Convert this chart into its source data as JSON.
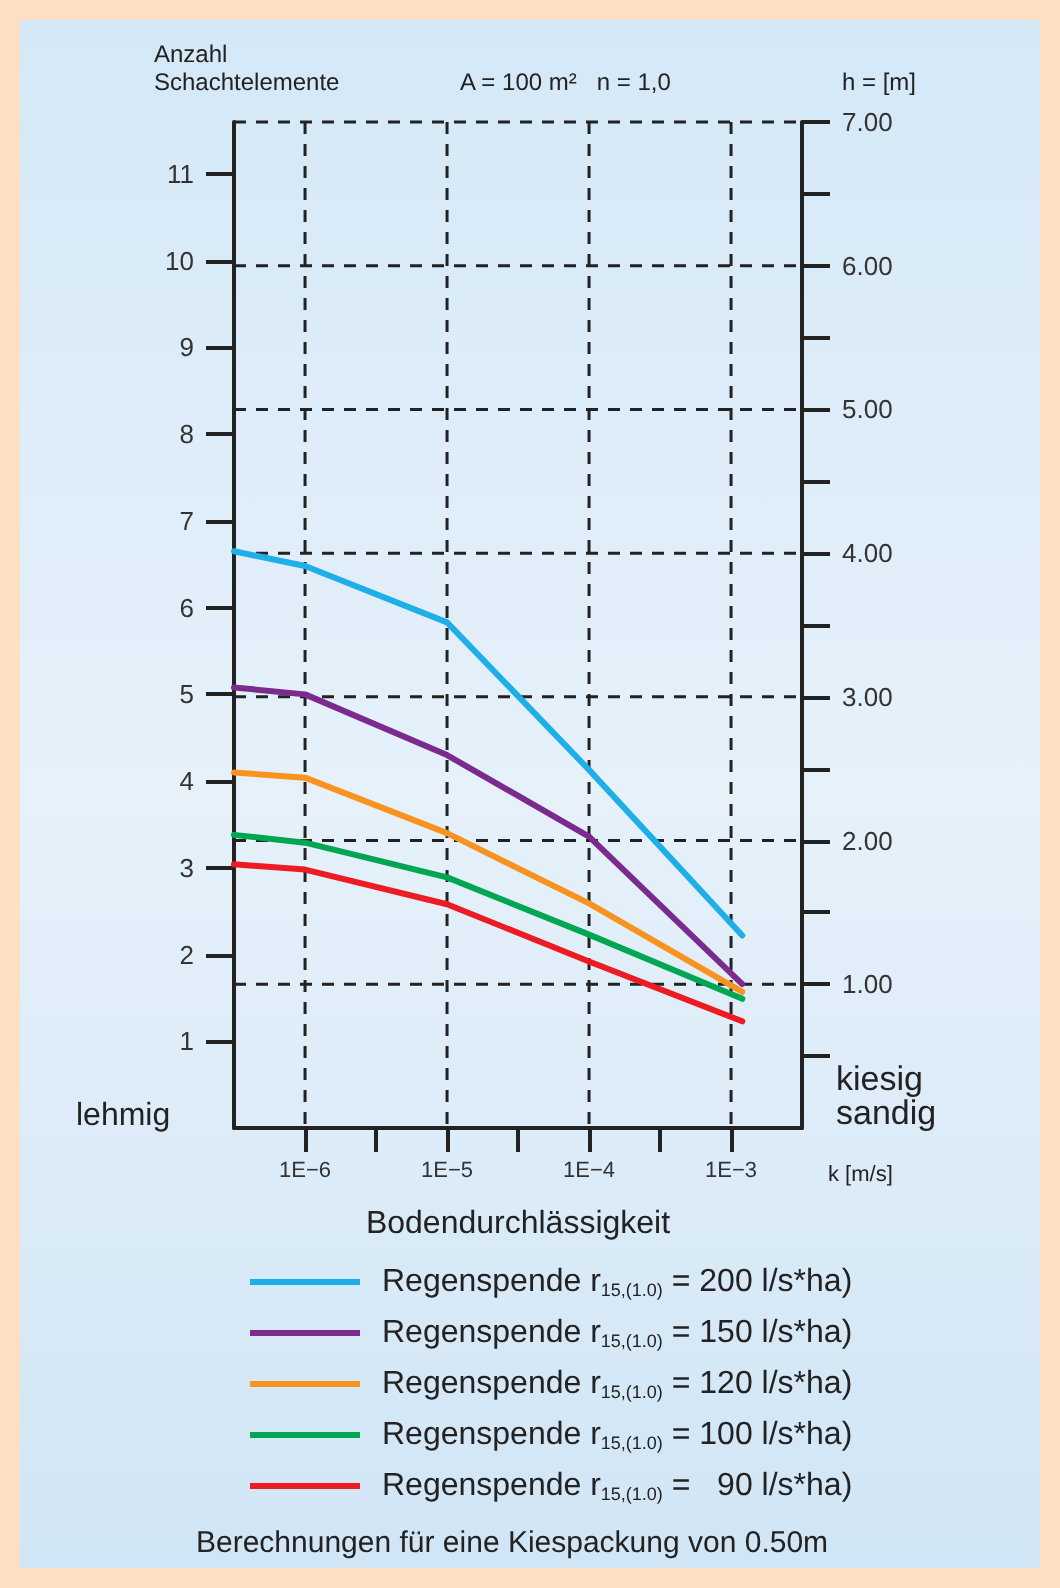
{
  "chart_data": {
    "type": "line",
    "ylabel": "Anzahl\nSchachtelemente",
    "y2label": "h = [m]",
    "xlabel": "Bodendurchlässigkeit",
    "annotations": [
      "A = 100 m²   n = 1,0",
      "k [m/s]",
      "lehmig",
      "kiesig\nsandig",
      "Berechnungen für eine Kiespackung von 0.50m"
    ],
    "log": "x",
    "xlim": [
      3.16e-07,
      0.00316
    ],
    "xticks": [
      {
        "value": 1e-06,
        "label": "1E−6"
      },
      {
        "value": 3.16e-06,
        "label": null
      },
      {
        "value": 1e-05,
        "label": "1E−5"
      },
      {
        "value": 3.16e-05,
        "label": null
      },
      {
        "value": 0.0001,
        "label": "1E−4"
      },
      {
        "value": 0.000316,
        "label": null
      },
      {
        "value": 0.001,
        "label": "1E−3"
      }
    ],
    "ylim": [
      0,
      11.6
    ],
    "yticks": [
      1,
      2,
      3,
      4,
      5,
      6,
      7,
      8,
      9,
      10,
      11
    ],
    "y2lim": [
      0,
      7
    ],
    "y2ticks": [
      {
        "value": 0.5,
        "label": null
      },
      {
        "value": 1,
        "label": "1.00"
      },
      {
        "value": 1.5,
        "label": null
      },
      {
        "value": 2,
        "label": "2.00"
      },
      {
        "value": 2.5,
        "label": null
      },
      {
        "value": 3,
        "label": "3.00"
      },
      {
        "value": 3.5,
        "label": null
      },
      {
        "value": 4,
        "label": "4.00"
      },
      {
        "value": 4.5,
        "label": null
      },
      {
        "value": 5,
        "label": "5.00"
      },
      {
        "value": 5.5,
        "label": null
      },
      {
        "value": 6,
        "label": "6.00"
      },
      {
        "value": 6.5,
        "label": null
      },
      {
        "value": 7,
        "label": "7.00"
      }
    ],
    "x": [
      3.16e-07,
      1e-06,
      1e-05,
      0.0001,
      0.0012
    ],
    "grid": true,
    "legend": "bottom",
    "marker": "none",
    "line_style": "solid",
    "series": [
      {
        "name": "Regenspende r$_{15,(1.0)}$ = 200 l/s*ha)",
        "color": "#1eaee8",
        "values": [
          6.65,
          6.48,
          5.83,
          4.13,
          2.22
        ]
      },
      {
        "name": "Regenspende r$_{15,(1.0)}$ = 150 l/s*ha)",
        "color": "#7b2a8e",
        "values": [
          5.08,
          5.0,
          4.3,
          3.36,
          1.66
        ]
      },
      {
        "name": "Regenspende r$_{15,(1.0)}$ = 120 l/s*ha)",
        "color": "#f7931e",
        "values": [
          4.1,
          4.04,
          3.4,
          2.59,
          1.57
        ]
      },
      {
        "name": "Regenspende r$_{15,(1.0)}$ = 100 l/s*ha)",
        "color": "#00a651",
        "values": [
          3.38,
          3.29,
          2.89,
          2.23,
          1.49
        ]
      },
      {
        "name": "Regenspende r$_{15,(1.0)}$ =   90 l/s*ha)",
        "color": "#ed1c24",
        "values": [
          3.04,
          2.98,
          2.58,
          1.92,
          1.23
        ]
      }
    ]
  }
}
